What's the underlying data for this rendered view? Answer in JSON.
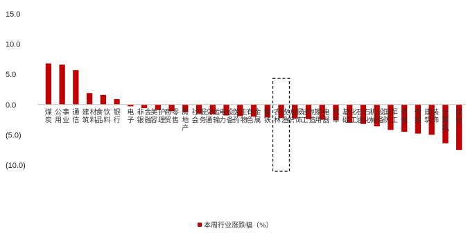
{
  "chart_data": {
    "type": "bar",
    "title": "",
    "xlabel": "",
    "ylabel": "",
    "ylim": [
      -10,
      15
    ],
    "yticks": [
      15,
      10,
      5,
      0,
      -5,
      -10
    ],
    "ytick_labels": [
      "15.0",
      "10.0",
      "5.0",
      "0.0",
      "(5.0)",
      "(10.0)"
    ],
    "grid": false,
    "legend_position": "bottom",
    "categories": [
      "煤炭",
      "公用事业",
      "通信",
      "建筑材料",
      "食品饮料",
      "银行",
      "电子",
      "非银金融",
      "美容护理",
      "商贸零售",
      "房地产",
      "社会服务",
      "交通运输",
      "电力设备",
      "医药生物",
      "有色金属",
      "钢铁",
      "农林牧渔",
      "纺织服饰",
      "轻工制造",
      "家用电器",
      "汽车",
      "基础化工",
      "石油石化",
      "机械设备",
      "国防军工",
      "环保",
      "传媒",
      "建筑装饰",
      "计算机",
      "综合"
    ],
    "category_labels": [
      "煤炭",
      "公用\n事业",
      "通信",
      "建筑\n材料",
      "食品\n饮料",
      "银行",
      "电子",
      "非银\n金融",
      "美容\n护理",
      "商贸\n零售",
      "房地产",
      "社会\n服务",
      "交通\n运输",
      "电力\n设备",
      "医药\n生物",
      "有色\n金属",
      "钢铁",
      "农林\n牧渔",
      "纺织\n服饰",
      "轻工\n制造",
      "家用\n电器",
      "汽车",
      "基础\n化工",
      "石油\n石化",
      "机械\n设备",
      "国防\n军工",
      "环保",
      "传媒",
      "建筑\n装饰",
      "计算机",
      "综合"
    ],
    "series": [
      {
        "name": "本周行业涨跌幅（%）",
        "color": "#C00000",
        "values": [
          6.8,
          6.6,
          5.7,
          1.9,
          1.6,
          0.9,
          -0.3,
          -0.6,
          -0.9,
          -1.1,
          -1.3,
          -1.5,
          -1.6,
          -1.8,
          -1.9,
          -2.0,
          -2.1,
          -2.2,
          -2.3,
          -2.4,
          -2.5,
          -2.6,
          -3.0,
          -3.2,
          -3.6,
          -4.2,
          -4.5,
          -4.8,
          -5.0,
          -6.4,
          -7.5
        ]
      }
    ],
    "highlight_category": "农林牧渔"
  }
}
